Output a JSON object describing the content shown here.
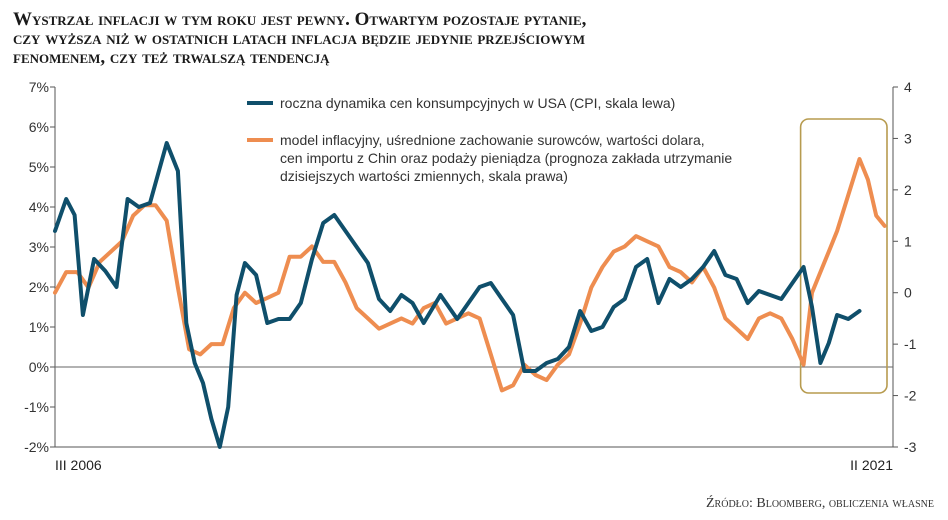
{
  "title_lines": [
    "Wystrzał inflacji w tym roku jest pewny. Otwartym pozostaje pytanie,",
    "czy wyższa niż w ostatnich latach inflacja będzie jedynie przejściowym",
    "fenomenem, czy też trwalszą tendencją"
  ],
  "source": "Źródło: Bloomberg, obliczenia własne",
  "colors": {
    "cpi": "#0f4f6b",
    "model": "#ee8d50",
    "highlight": "#b79b4f",
    "axis": "#555555"
  },
  "chart_data": {
    "type": "line",
    "x_range": [
      "III 2006",
      "II 2021"
    ],
    "x_labels": {
      "start": "III 2006",
      "end": "II 2021"
    },
    "left_axis": {
      "min": -2,
      "max": 7,
      "ticks": [
        "-2%",
        "-1%",
        "0%",
        "1%",
        "2%",
        "3%",
        "4%",
        "5%",
        "6%",
        "7%"
      ]
    },
    "right_axis": {
      "min": -3,
      "max": 4,
      "ticks": [
        "-3",
        "-2",
        "-1",
        "0",
        "1",
        "2",
        "3",
        "4"
      ]
    },
    "series": [
      {
        "name": "cpi",
        "label": "roczna dynamika cen konsumpcyjnych w USA (CPI, skala lewa)",
        "axis": "left",
        "x": [
          2006.6,
          2006.8,
          2006.95,
          2007.1,
          2007.3,
          2007.5,
          2007.7,
          2007.9,
          2008.1,
          2008.3,
          2008.6,
          2008.8,
          2008.95,
          2009.1,
          2009.25,
          2009.4,
          2009.55,
          2009.7,
          2009.85,
          2010.0,
          2010.2,
          2010.4,
          2010.6,
          2010.8,
          2011.0,
          2011.2,
          2011.4,
          2011.6,
          2011.8,
          2012.0,
          2012.2,
          2012.4,
          2012.6,
          2012.8,
          2013.0,
          2013.2,
          2013.5,
          2013.8,
          2014.0,
          2014.2,
          2014.4,
          2014.6,
          2014.8,
          2015.0,
          2015.2,
          2015.4,
          2015.6,
          2015.8,
          2016.0,
          2016.2,
          2016.4,
          2016.6,
          2016.8,
          2017.0,
          2017.2,
          2017.4,
          2017.6,
          2017.8,
          2018.0,
          2018.2,
          2018.4,
          2018.6,
          2018.8,
          2019.0,
          2019.2,
          2019.4,
          2019.6,
          2019.8,
          2020.0,
          2020.15,
          2020.3,
          2020.45,
          2020.6,
          2020.8,
          2021.0
        ],
        "values": [
          3.4,
          4.2,
          3.8,
          1.3,
          2.7,
          2.4,
          2.0,
          4.2,
          4.0,
          4.1,
          5.6,
          4.9,
          1.1,
          0.1,
          -0.4,
          -1.3,
          -2.0,
          -1.0,
          1.8,
          2.6,
          2.3,
          1.1,
          1.2,
          1.2,
          1.6,
          2.7,
          3.6,
          3.8,
          3.4,
          3.0,
          2.6,
          1.7,
          1.4,
          1.8,
          1.6,
          1.1,
          1.8,
          1.2,
          1.6,
          2.0,
          2.1,
          1.7,
          1.3,
          -0.1,
          -0.1,
          0.1,
          0.2,
          0.5,
          1.4,
          0.9,
          1.0,
          1.5,
          1.7,
          2.5,
          2.7,
          1.6,
          2.2,
          2.0,
          2.2,
          2.5,
          2.9,
          2.3,
          2.2,
          1.6,
          1.9,
          1.8,
          1.7,
          2.1,
          2.5,
          1.5,
          0.1,
          0.6,
          1.3,
          1.2,
          1.4
        ]
      },
      {
        "name": "model",
        "label_lines": [
          "model inflacyjny, uśrednione zachowanie surowców, wartości dolara,",
          "cen importu z Chin oraz podaży pieniądza (prognoza zakłada utrzymanie",
          "dzisiejszych wartości zmiennych, skala prawa)"
        ],
        "axis": "right",
        "x": [
          2006.6,
          2006.8,
          2007.0,
          2007.2,
          2007.4,
          2007.6,
          2007.8,
          2008.0,
          2008.2,
          2008.4,
          2008.6,
          2008.8,
          2009.0,
          2009.2,
          2009.4,
          2009.6,
          2009.8,
          2010.0,
          2010.2,
          2010.4,
          2010.6,
          2010.8,
          2011.0,
          2011.2,
          2011.4,
          2011.6,
          2011.8,
          2012.0,
          2012.2,
          2012.4,
          2012.6,
          2012.8,
          2013.0,
          2013.2,
          2013.4,
          2013.6,
          2013.8,
          2014.0,
          2014.2,
          2014.4,
          2014.6,
          2014.8,
          2015.0,
          2015.2,
          2015.4,
          2015.6,
          2015.8,
          2016.0,
          2016.2,
          2016.4,
          2016.6,
          2016.8,
          2017.0,
          2017.2,
          2017.4,
          2017.6,
          2017.8,
          2018.0,
          2018.2,
          2018.4,
          2018.6,
          2018.8,
          2019.0,
          2019.2,
          2019.4,
          2019.6,
          2019.8,
          2020.0,
          2020.15,
          2020.3,
          2020.45,
          2020.6,
          2020.8,
          2021.0,
          2021.15,
          2021.3,
          2021.45
        ],
        "values": [
          0.0,
          0.4,
          0.4,
          0.1,
          0.6,
          0.8,
          1.0,
          1.5,
          1.7,
          1.7,
          1.4,
          0.1,
          -1.1,
          -1.2,
          -1.0,
          -1.0,
          -0.3,
          0.0,
          -0.2,
          -0.1,
          0.0,
          0.7,
          0.7,
          0.9,
          0.6,
          0.6,
          0.2,
          -0.3,
          -0.5,
          -0.7,
          -0.6,
          -0.5,
          -0.6,
          -0.3,
          -0.2,
          -0.6,
          -0.5,
          -0.4,
          -0.5,
          -1.2,
          -1.9,
          -1.8,
          -1.4,
          -1.6,
          -1.7,
          -1.4,
          -1.2,
          -0.6,
          0.1,
          0.5,
          0.8,
          0.9,
          1.1,
          1.0,
          0.9,
          0.5,
          0.4,
          0.2,
          0.5,
          0.1,
          -0.5,
          -0.7,
          -0.9,
          -0.5,
          -0.4,
          -0.5,
          -0.9,
          -1.4,
          0.0,
          0.4,
          0.8,
          1.2,
          1.9,
          2.6,
          2.2,
          1.5,
          1.3
        ]
      }
    ],
    "highlight": {
      "from": 2020.0,
      "to": 2021.6,
      "label": ""
    }
  }
}
